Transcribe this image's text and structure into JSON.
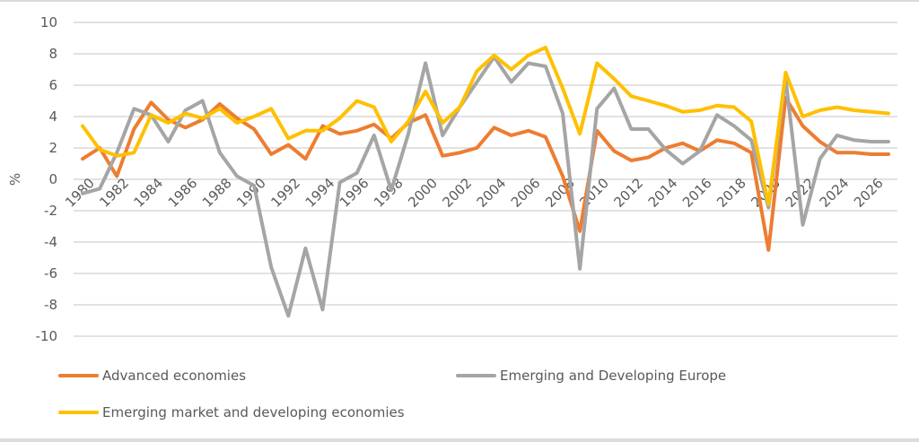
{
  "chart_data": {
    "type": "line",
    "title": "",
    "xlabel": "",
    "ylabel": "%",
    "ylim": [
      -10,
      10
    ],
    "yticks": [
      10,
      8,
      6,
      4,
      2,
      0,
      -2,
      -4,
      -6,
      -8,
      -10
    ],
    "grid": true,
    "legend_position": "bottom",
    "x": [
      1980,
      1981,
      1982,
      1983,
      1984,
      1985,
      1986,
      1987,
      1988,
      1989,
      1990,
      1991,
      1992,
      1993,
      1994,
      1995,
      1996,
      1997,
      1998,
      1999,
      2000,
      2001,
      2002,
      2003,
      2004,
      2005,
      2006,
      2007,
      2008,
      2009,
      2010,
      2011,
      2012,
      2013,
      2014,
      2015,
      2016,
      2017,
      2018,
      2019,
      2020,
      2021,
      2022,
      2023,
      2024,
      2025,
      2026,
      2027
    ],
    "xtick_labels": [
      "1980",
      "1982",
      "1984",
      "1986",
      "1988",
      "1990",
      "1992",
      "1994",
      "1996",
      "1998",
      "2000",
      "2002",
      "2004",
      "2006",
      "2008",
      "2010",
      "2012",
      "2014",
      "2016",
      "2018",
      "2020",
      "2022",
      "2024",
      "2026"
    ],
    "series": [
      {
        "name": "Advanced economies",
        "color": "#ed7d31",
        "values": [
          1.3,
          2.0,
          0.2,
          3.2,
          4.9,
          3.8,
          3.3,
          3.8,
          4.8,
          3.9,
          3.2,
          1.6,
          2.2,
          1.3,
          3.4,
          2.9,
          3.1,
          3.5,
          2.6,
          3.6,
          4.1,
          1.5,
          1.7,
          2.0,
          3.3,
          2.8,
          3.1,
          2.7,
          0.2,
          -3.3,
          3.1,
          1.8,
          1.2,
          1.4,
          2.0,
          2.3,
          1.8,
          2.5,
          2.3,
          1.7,
          -4.5,
          5.2,
          3.4,
          2.4,
          1.7,
          1.7,
          1.6,
          1.6
        ]
      },
      {
        "name": "Emerging and Developing Europe",
        "color": "#a5a5a5",
        "values": [
          -0.9,
          -0.6,
          1.7,
          4.5,
          4.1,
          2.4,
          4.4,
          5.0,
          1.7,
          0.2,
          -0.4,
          -5.6,
          -8.7,
          -4.4,
          -8.3,
          -0.2,
          0.4,
          2.8,
          -0.7,
          2.9,
          7.4,
          2.8,
          4.6,
          6.2,
          7.8,
          6.2,
          7.4,
          7.2,
          4.2,
          -5.7,
          4.5,
          5.8,
          3.2,
          3.2,
          1.9,
          1.0,
          1.8,
          4.1,
          3.4,
          2.5,
          -1.8,
          6.4,
          -2.9,
          1.3,
          2.8,
          2.5,
          2.4,
          2.4
        ]
      },
      {
        "name": "Emerging market and developing economies",
        "color": "#ffc000",
        "values": [
          3.4,
          1.9,
          1.5,
          1.7,
          4.1,
          3.6,
          4.2,
          3.9,
          4.5,
          3.6,
          4.0,
          4.5,
          2.6,
          3.1,
          3.1,
          3.9,
          5.0,
          4.6,
          2.4,
          3.7,
          5.6,
          3.6,
          4.6,
          6.9,
          7.9,
          7.0,
          7.9,
          8.4,
          5.8,
          2.9,
          7.4,
          6.4,
          5.3,
          5.0,
          4.7,
          4.3,
          4.4,
          4.7,
          4.6,
          3.7,
          -1.6,
          6.8,
          4.0,
          4.4,
          4.6,
          4.4,
          4.3,
          4.2
        ]
      }
    ]
  },
  "legend": {
    "items": [
      {
        "label": "Advanced economies",
        "color": "#ed7d31"
      },
      {
        "label": "Emerging and Developing Europe",
        "color": "#a5a5a5"
      },
      {
        "label": "Emerging market and developing economies",
        "color": "#ffc000"
      }
    ]
  }
}
